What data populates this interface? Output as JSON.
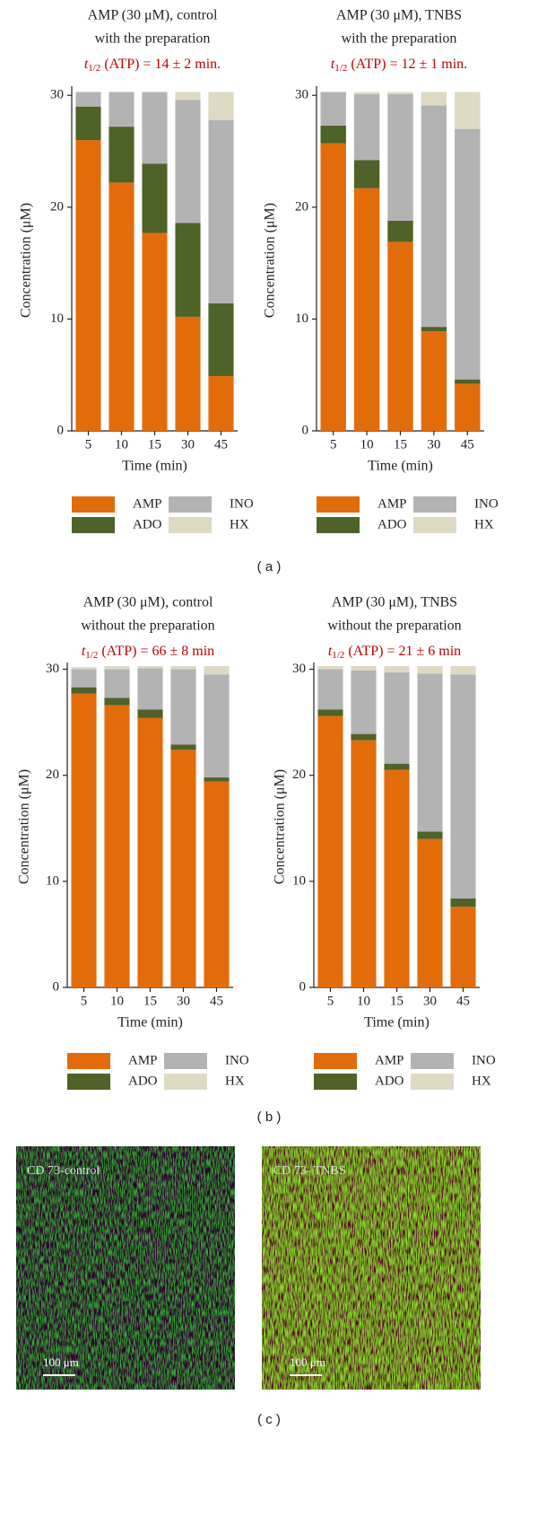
{
  "chart_data": [
    {
      "type": "stacked_bar",
      "title": [
        "AMP (30 μM), control",
        "with the preparation"
      ],
      "annotation": {
        "symbol": "t",
        "subscript": "1/2",
        "text": "(ATP) = 14 ± 2 min."
      },
      "x_label": "Time (min)",
      "y_label": "Concentration (μM)",
      "categories": [
        "5",
        "10",
        "15",
        "30",
        "45"
      ],
      "series": [
        {
          "name": "AMP",
          "color": "#e36c0a",
          "values": [
            26,
            22.2,
            17.7,
            10.2,
            4.9
          ]
        },
        {
          "name": "ADO",
          "color": "#4f6228",
          "values": [
            3,
            5,
            6.2,
            8.4,
            6.5
          ]
        },
        {
          "name": "INO",
          "color": "#b3b3b3",
          "values": [
            1.3,
            3.1,
            6.4,
            11,
            16.4
          ]
        },
        {
          "name": "HX",
          "color": "#ddd9c3",
          "values": [
            0,
            0,
            0,
            0.7,
            2.5
          ]
        }
      ],
      "ylim": [
        0,
        30.5
      ],
      "yticks": [
        0,
        10,
        20,
        30
      ]
    },
    {
      "type": "stacked_bar",
      "title": [
        "AMP (30 μM), TNBS",
        "with the preparation"
      ],
      "annotation": {
        "symbol": "t",
        "subscript": "1/2",
        "text": "(ATP) = 12 ± 1 min."
      },
      "x_label": "Time (min)",
      "y_label": "Concentration (μM)",
      "categories": [
        "5",
        "10",
        "15",
        "30",
        "45"
      ],
      "series": [
        {
          "name": "AMP",
          "color": "#e36c0a",
          "values": [
            25.7,
            21.7,
            16.9,
            8.9,
            4.2
          ]
        },
        {
          "name": "ADO",
          "color": "#4f6228",
          "values": [
            1.6,
            2.5,
            1.9,
            0.4,
            0.4
          ]
        },
        {
          "name": "INO",
          "color": "#b3b3b3",
          "values": [
            3,
            5.9,
            11.3,
            19.8,
            22.4
          ]
        },
        {
          "name": "HX",
          "color": "#ddd9c3",
          "values": [
            0,
            0.2,
            0.2,
            1.2,
            3.3
          ]
        }
      ],
      "ylim": [
        0,
        30.5
      ],
      "yticks": [
        0,
        10,
        20,
        30
      ]
    },
    {
      "type": "stacked_bar",
      "title": [
        "AMP (30 μM), control",
        "without the preparation"
      ],
      "annotation": {
        "symbol": "t",
        "subscript": "1/2",
        "text": "(ATP) = 66 ± 8 min"
      },
      "x_label": "Time (min)",
      "y_label": "Concentration (μM)",
      "categories": [
        "5",
        "10",
        "15",
        "30",
        "45"
      ],
      "series": [
        {
          "name": "AMP",
          "color": "#e36c0a",
          "values": [
            27.7,
            26.6,
            25.4,
            22.4,
            19.4
          ]
        },
        {
          "name": "ADO",
          "color": "#4f6228",
          "values": [
            0.6,
            0.7,
            0.8,
            0.5,
            0.4
          ]
        },
        {
          "name": "INO",
          "color": "#b3b3b3",
          "values": [
            1.7,
            2.7,
            3.9,
            7.1,
            9.7
          ]
        },
        {
          "name": "HX",
          "color": "#ddd9c3",
          "values": [
            0.2,
            0.3,
            0.2,
            0.3,
            0.8
          ]
        }
      ],
      "ylim": [
        0,
        30.3
      ],
      "yticks": [
        0,
        10,
        20,
        30
      ]
    },
    {
      "type": "stacked_bar",
      "title": [
        "AMP (30 μM), TNBS",
        "without the preparation"
      ],
      "annotation": {
        "symbol": "t",
        "subscript": "1/2",
        "text": "(ATP) = 21 ± 6 min"
      },
      "x_label": "Time (min)",
      "y_label": "Concentration (μM)",
      "categories": [
        "5",
        "10",
        "15",
        "30",
        "45"
      ],
      "series": [
        {
          "name": "AMP",
          "color": "#e36c0a",
          "values": [
            25.6,
            23.3,
            20.5,
            14,
            7.6
          ]
        },
        {
          "name": "ADO",
          "color": "#4f6228",
          "values": [
            0.6,
            0.6,
            0.6,
            0.7,
            0.8
          ]
        },
        {
          "name": "INO",
          "color": "#b3b3b3",
          "values": [
            3.8,
            6,
            8.6,
            14.9,
            21.1
          ]
        },
        {
          "name": "HX",
          "color": "#ddd9c3",
          "values": [
            0.3,
            0.4,
            0.6,
            0.7,
            0.8
          ]
        }
      ],
      "ylim": [
        0,
        30.3
      ],
      "yticks": [
        0,
        10,
        20,
        30
      ]
    }
  ],
  "panel_labels": [
    "( a )",
    "( b )",
    "( c )"
  ],
  "images": [
    {
      "label": "CD 73-control",
      "scale_bar": "100 μm"
    },
    {
      "label": "CD 73- TNBS",
      "scale_bar": "100 μm"
    }
  ]
}
